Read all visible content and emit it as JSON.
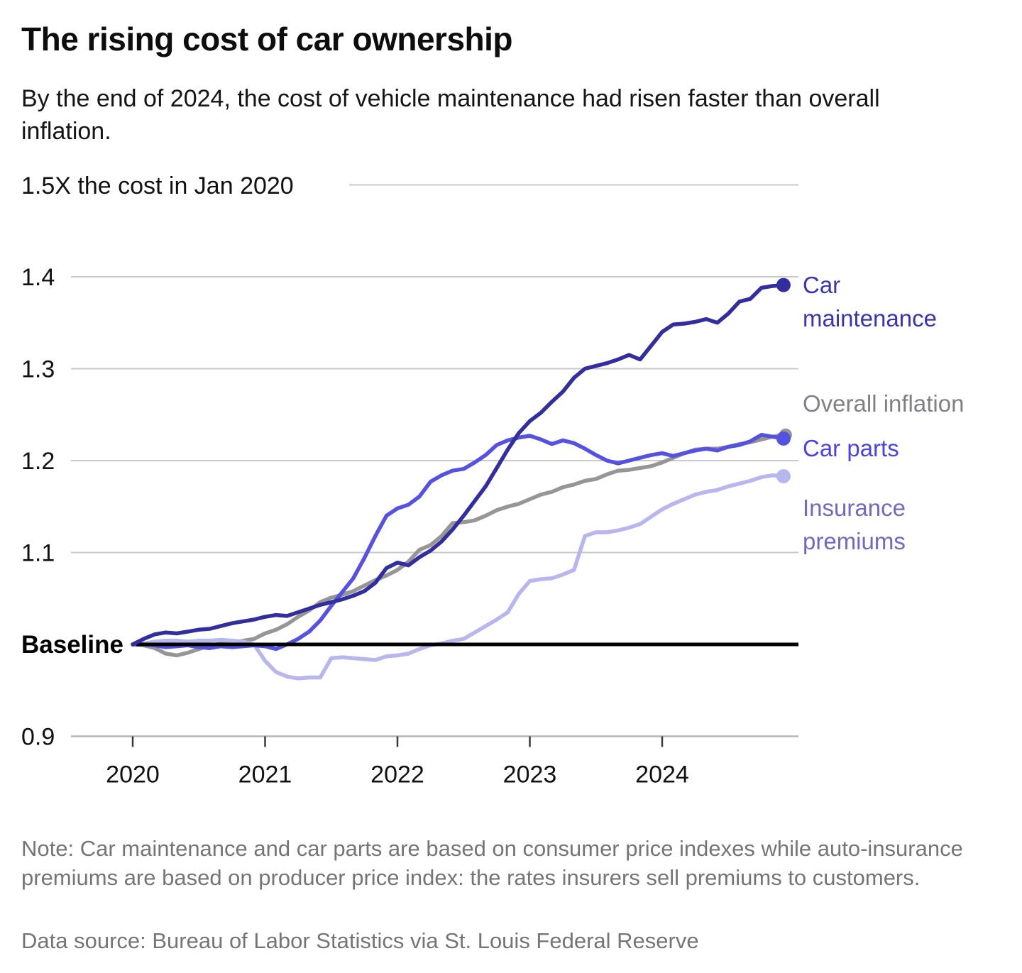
{
  "header": {
    "title": "The rising cost of car ownership",
    "subtitle": "By the end of 2024, the cost of vehicle maintenance had risen faster than overall inflation."
  },
  "chart_data": {
    "type": "line",
    "frequency": "monthly",
    "x_start": "2020-01",
    "x_end": "2024-12",
    "x_year_labels": [
      "2020",
      "2021",
      "2022",
      "2023",
      "2024"
    ],
    "top_axis_label": "1.5X the cost in Jan 2020",
    "top_axis_value": 1.5,
    "baseline_label": "Baseline",
    "baseline_value": 1.0,
    "ylim": [
      0.9,
      1.5
    ],
    "y_ticks": [
      {
        "label": "1.4",
        "value": 1.4
      },
      {
        "label": "1.3",
        "value": 1.3
      },
      {
        "label": "1.2",
        "value": 1.2
      },
      {
        "label": "1.1",
        "value": 1.1
      },
      {
        "label": "0.9",
        "value": 0.9
      }
    ],
    "grid_color": "#c9c9c9",
    "axis_color": "#b5b5b5",
    "tick_color": "#3a3a3a",
    "baseline_color": "#000000",
    "series": [
      {
        "name": "overall-inflation",
        "label": "Overall inflation",
        "color": "#969696",
        "label_color": "#7f7f88",
        "end_value": 1.23,
        "values": [
          1.0,
          0.999,
          0.996,
          0.99,
          0.988,
          0.991,
          0.995,
          0.999,
          1.001,
          1.002,
          1.004,
          1.006,
          1.012,
          1.016,
          1.022,
          1.03,
          1.037,
          1.046,
          1.051,
          1.054,
          1.058,
          1.064,
          1.07,
          1.075,
          1.081,
          1.09,
          1.103,
          1.108,
          1.118,
          1.132,
          1.133,
          1.135,
          1.14,
          1.146,
          1.15,
          1.153,
          1.158,
          1.163,
          1.166,
          1.171,
          1.174,
          1.178,
          1.18,
          1.185,
          1.189,
          1.19,
          1.192,
          1.194,
          1.198,
          1.203,
          1.208,
          1.212,
          1.213,
          1.213,
          1.215,
          1.218,
          1.22,
          1.223,
          1.226,
          1.228
        ]
      },
      {
        "name": "insurance-premiums",
        "label": "Insurance premiums",
        "color": "#b7b6ef",
        "label_color": "#6e6abf",
        "end_value": 1.18,
        "values": [
          1.0,
          1.001,
          1.003,
          1.004,
          1.004,
          1.003,
          1.004,
          1.004,
          1.005,
          1.004,
          1.003,
          1.0,
          0.982,
          0.97,
          0.965,
          0.963,
          0.964,
          0.964,
          0.985,
          0.986,
          0.985,
          0.984,
          0.983,
          0.987,
          0.988,
          0.99,
          0.995,
          0.999,
          1.001,
          1.004,
          1.006,
          1.013,
          1.02,
          1.027,
          1.035,
          1.055,
          1.069,
          1.071,
          1.072,
          1.076,
          1.081,
          1.118,
          1.122,
          1.122,
          1.124,
          1.127,
          1.131,
          1.139,
          1.147,
          1.153,
          1.158,
          1.163,
          1.166,
          1.168,
          1.172,
          1.175,
          1.178,
          1.182,
          1.184,
          1.183
        ]
      },
      {
        "name": "car-parts",
        "label": "Car parts",
        "color": "#5552e0",
        "label_color": "#4a43de",
        "end_value": 1.22,
        "values": [
          1.0,
          1.0,
          0.999,
          0.997,
          0.998,
          0.999,
          0.997,
          0.996,
          0.998,
          0.997,
          0.998,
          0.999,
          0.998,
          0.995,
          1.0,
          1.006,
          1.014,
          1.026,
          1.042,
          1.057,
          1.072,
          1.094,
          1.118,
          1.14,
          1.148,
          1.152,
          1.161,
          1.177,
          1.184,
          1.189,
          1.191,
          1.198,
          1.206,
          1.217,
          1.222,
          1.225,
          1.227,
          1.223,
          1.218,
          1.222,
          1.219,
          1.213,
          1.206,
          1.2,
          1.197,
          1.2,
          1.203,
          1.206,
          1.208,
          1.205,
          1.208,
          1.211,
          1.213,
          1.211,
          1.215,
          1.217,
          1.221,
          1.228,
          1.226,
          1.224
        ]
      },
      {
        "name": "car-maintenance",
        "label": "Car maintenance",
        "color": "#332e9e",
        "label_color": "#3b35ad",
        "end_value": 1.39,
        "values": [
          1.0,
          1.006,
          1.011,
          1.013,
          1.012,
          1.014,
          1.016,
          1.017,
          1.02,
          1.023,
          1.025,
          1.027,
          1.03,
          1.032,
          1.031,
          1.035,
          1.039,
          1.043,
          1.046,
          1.049,
          1.053,
          1.058,
          1.067,
          1.083,
          1.089,
          1.086,
          1.095,
          1.102,
          1.112,
          1.125,
          1.14,
          1.156,
          1.172,
          1.192,
          1.212,
          1.23,
          1.243,
          1.252,
          1.264,
          1.275,
          1.29,
          1.3,
          1.303,
          1.306,
          1.31,
          1.315,
          1.31,
          1.325,
          1.34,
          1.348,
          1.349,
          1.351,
          1.354,
          1.35,
          1.36,
          1.373,
          1.376,
          1.388,
          1.39,
          1.391
        ]
      }
    ]
  },
  "notes": {
    "note": "Note: Car maintenance and car parts are based on consumer price indexes while auto-insurance premiums are based on producer price index: the rates insurers sell premiums to customers.",
    "source": "Data source: Bureau of Labor Statistics via St. Louis Federal Reserve"
  }
}
